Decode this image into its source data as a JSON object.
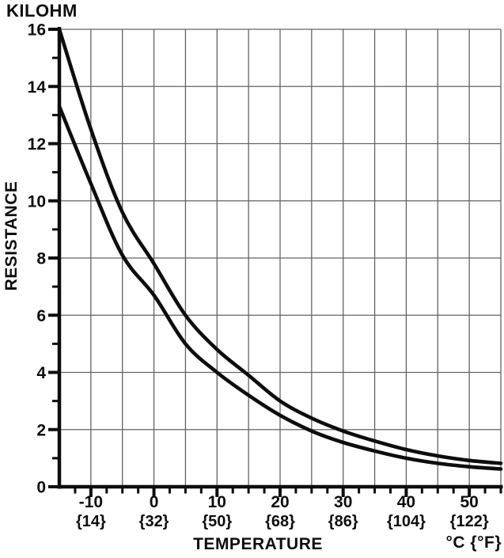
{
  "page": {
    "background": "#ffffff"
  },
  "labels": {
    "y_unit": "KILOHM",
    "y_axis": "RESISTANCE",
    "x_axis": "TEMPERATURE",
    "x_unit": "°C {°F}"
  },
  "colors": {
    "background": "#ffffff",
    "curve": "#0d0d0d",
    "axis": "#0d0d0d",
    "grid": "#636363",
    "text": "#0d0d0d"
  },
  "chart_data": {
    "type": "line",
    "title": "",
    "xlabel": "TEMPERATURE",
    "ylabel": "RESISTANCE",
    "x_unit_label": "°C {°F}",
    "y_unit_label": "KILOHM",
    "xlim": [
      -15,
      55
    ],
    "ylim": [
      0,
      16
    ],
    "grid": true,
    "legend_position": "none",
    "x_grid_step": 5,
    "y_grid_step": 2,
    "x_minor_tick_step": 2.5,
    "y_minor_tick_step": 1,
    "y_ticks": [
      0,
      2,
      4,
      6,
      8,
      10,
      12,
      14,
      16
    ],
    "x_ticks": [
      {
        "value": -10,
        "c_label": "-10",
        "f_label": "{14}"
      },
      {
        "value": 0,
        "c_label": "0",
        "f_label": "{32}"
      },
      {
        "value": 10,
        "c_label": "10",
        "f_label": "{50}"
      },
      {
        "value": 20,
        "c_label": "20",
        "f_label": "{68}"
      },
      {
        "value": 30,
        "c_label": "30",
        "f_label": "{86}"
      },
      {
        "value": 40,
        "c_label": "40",
        "f_label": "{104}"
      },
      {
        "value": 50,
        "c_label": "50",
        "f_label": "{122}"
      }
    ],
    "x": [
      -15,
      -10,
      -5,
      0,
      5,
      10,
      15,
      20,
      25,
      30,
      35,
      40,
      45,
      50,
      55
    ],
    "series": [
      {
        "name": "upper curve",
        "values": [
          16.0,
          12.5,
          9.6,
          7.8,
          6.0,
          4.8,
          3.9,
          3.0,
          2.4,
          1.95,
          1.6,
          1.3,
          1.08,
          0.92,
          0.82
        ]
      },
      {
        "name": "lower curve",
        "values": [
          13.3,
          10.6,
          8.1,
          6.7,
          5.0,
          4.0,
          3.2,
          2.5,
          1.95,
          1.55,
          1.25,
          1.0,
          0.82,
          0.7,
          0.62
        ]
      }
    ]
  }
}
